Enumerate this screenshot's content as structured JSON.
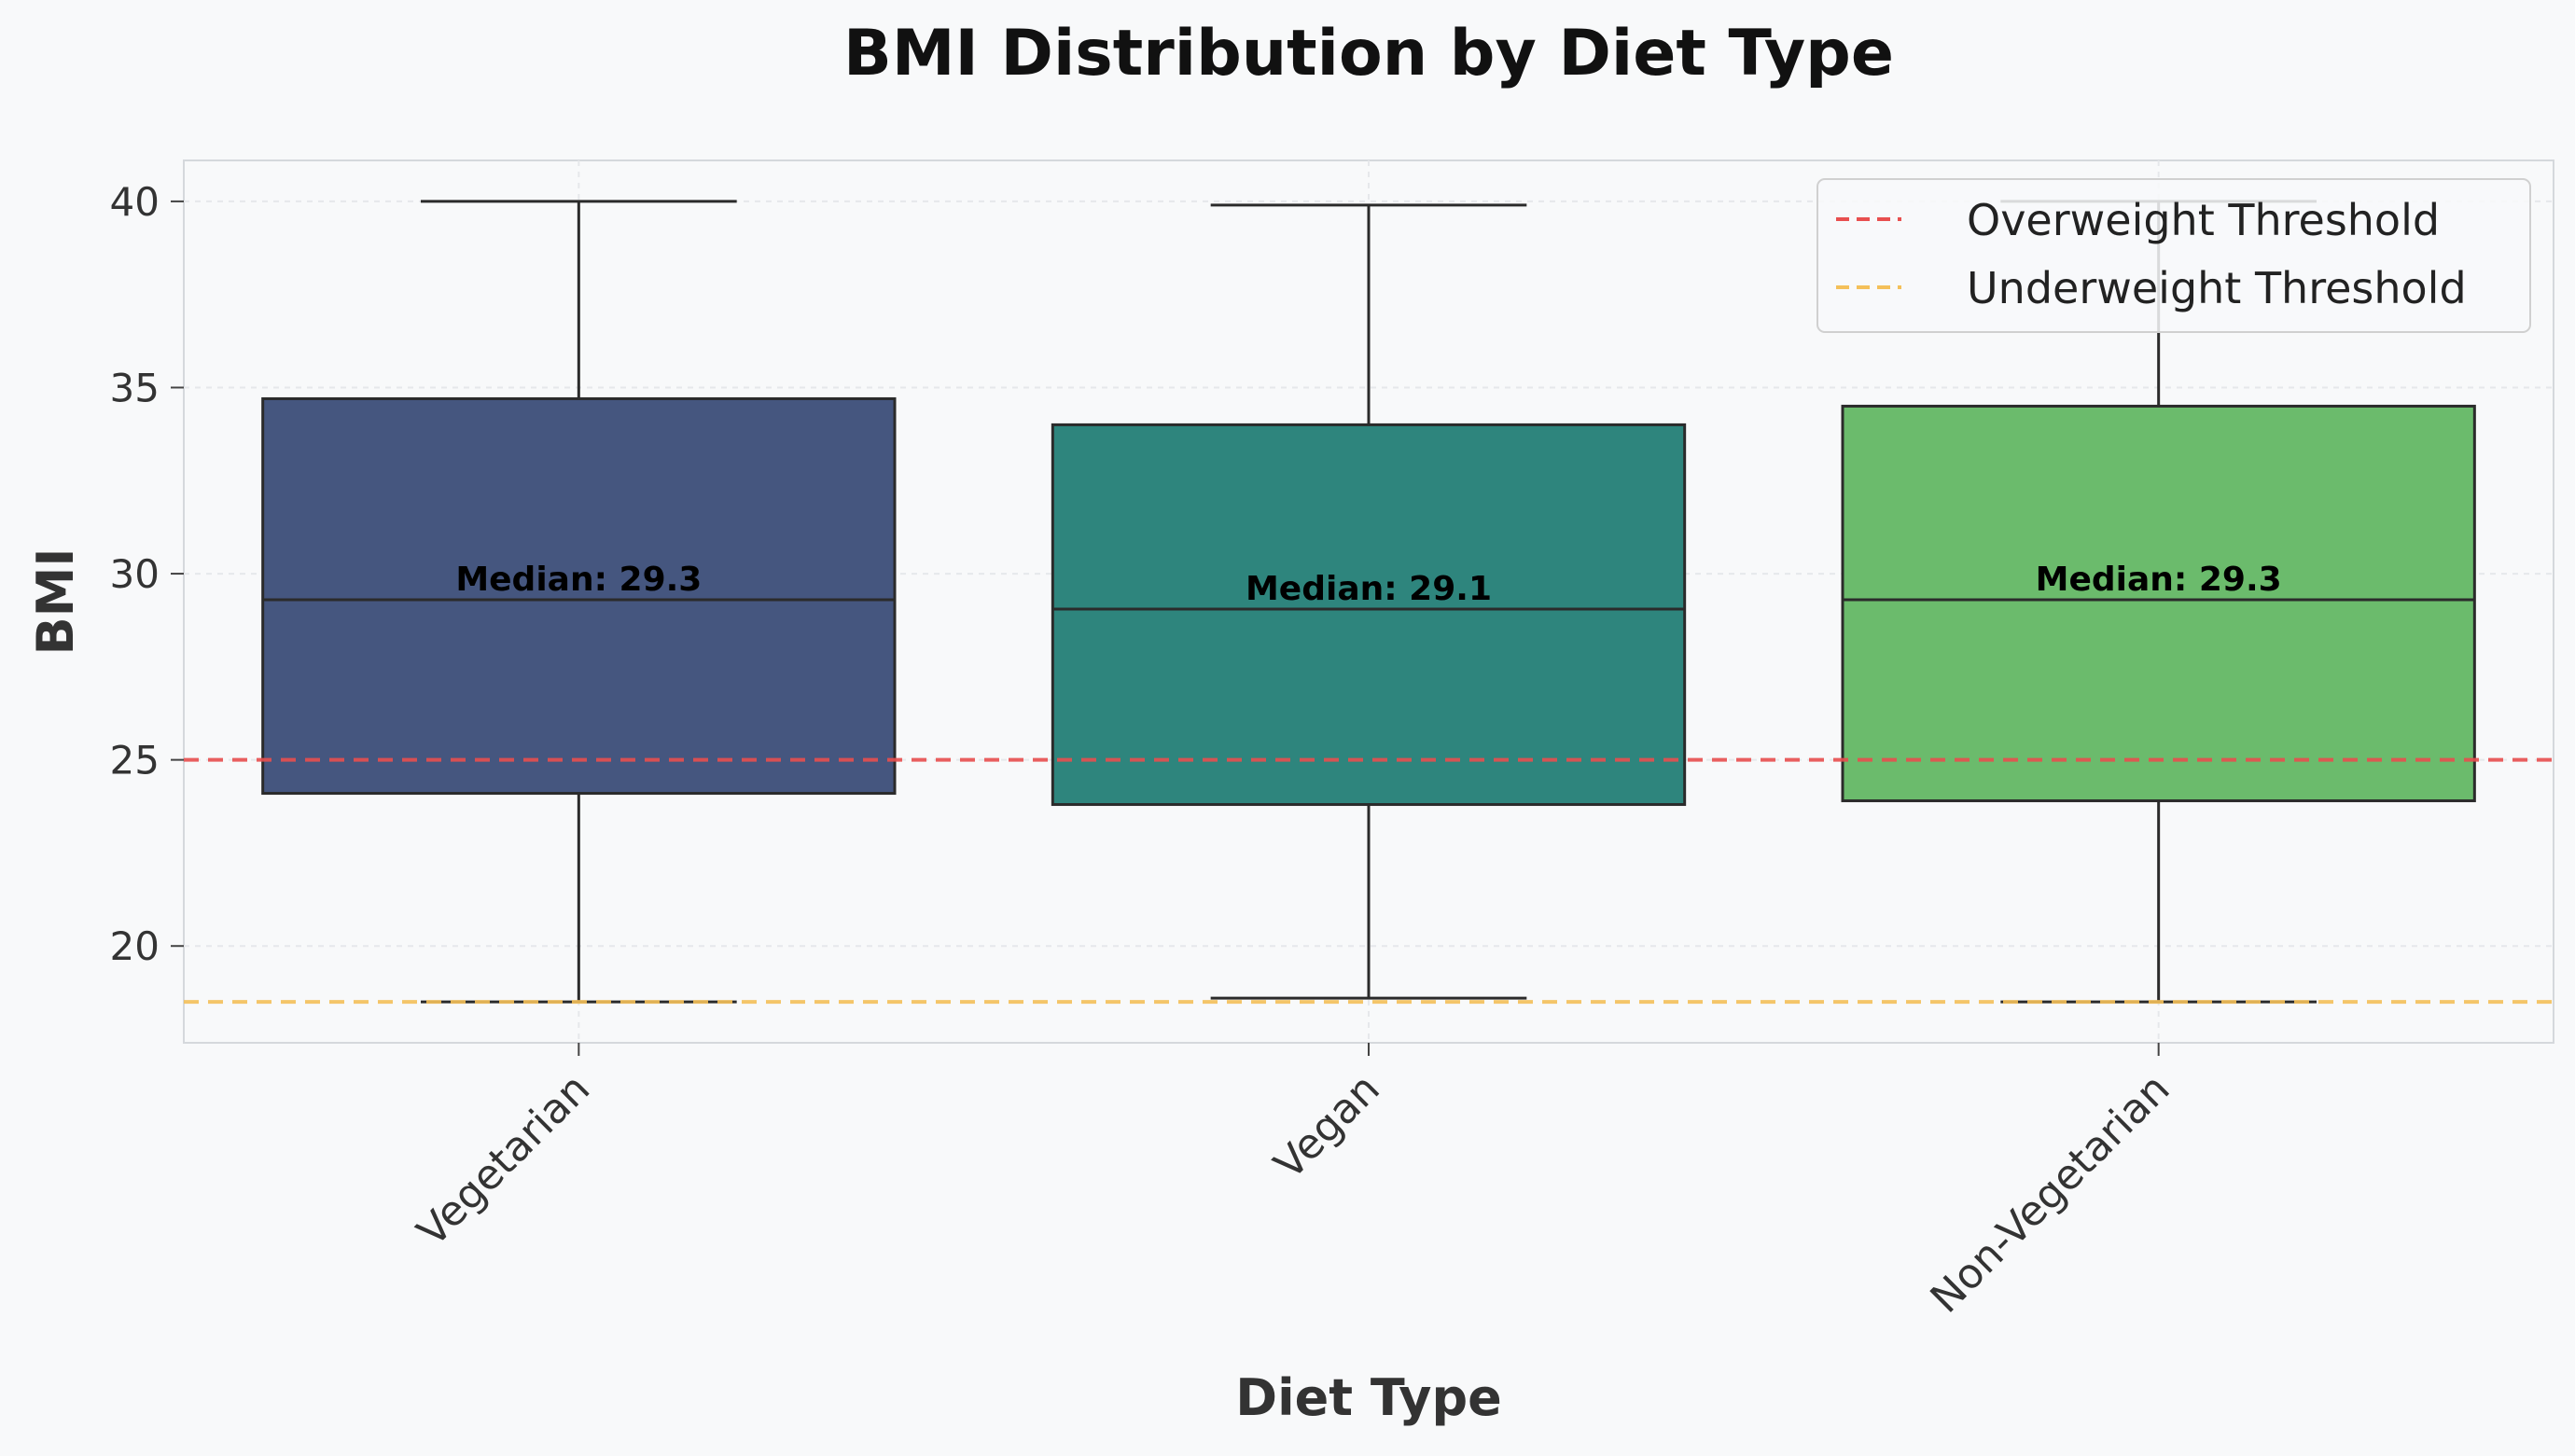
{
  "chart_data": {
    "type": "box",
    "title": "BMI Distribution by Diet Type",
    "xlabel": "Diet Type",
    "ylabel": "BMI",
    "ylim": [
      17.4,
      41.1
    ],
    "yticks": [
      20,
      25,
      30,
      35,
      40
    ],
    "categories": [
      "Vegetarian",
      "Vegan",
      "Non-Vegetarian"
    ],
    "boxes": [
      {
        "category": "Vegetarian",
        "min": 18.5,
        "q1": 24.1,
        "median": 29.3,
        "q3": 34.7,
        "max": 40.0,
        "color": "#45567f",
        "median_label": "Median: 29.3"
      },
      {
        "category": "Vegan",
        "min": 18.6,
        "q1": 23.8,
        "median": 29.05,
        "q3": 34.0,
        "max": 39.9,
        "color": "#2e857d",
        "median_label": "Median: 29.1"
      },
      {
        "category": "Non-Vegetarian",
        "min": 18.5,
        "q1": 23.9,
        "median": 29.3,
        "q3": 34.5,
        "max": 40.0,
        "color": "#6bbb6c",
        "median_label": "Median: 29.3"
      }
    ],
    "reference_lines": [
      {
        "name": "Overweight Threshold",
        "y": 25,
        "color": "#e84f4f",
        "style": "dashed"
      },
      {
        "name": "Underweight Threshold",
        "y": 18.5,
        "color": "#f4c05a",
        "style": "dashed"
      }
    ],
    "legend_position": "top-right",
    "grid": true
  }
}
